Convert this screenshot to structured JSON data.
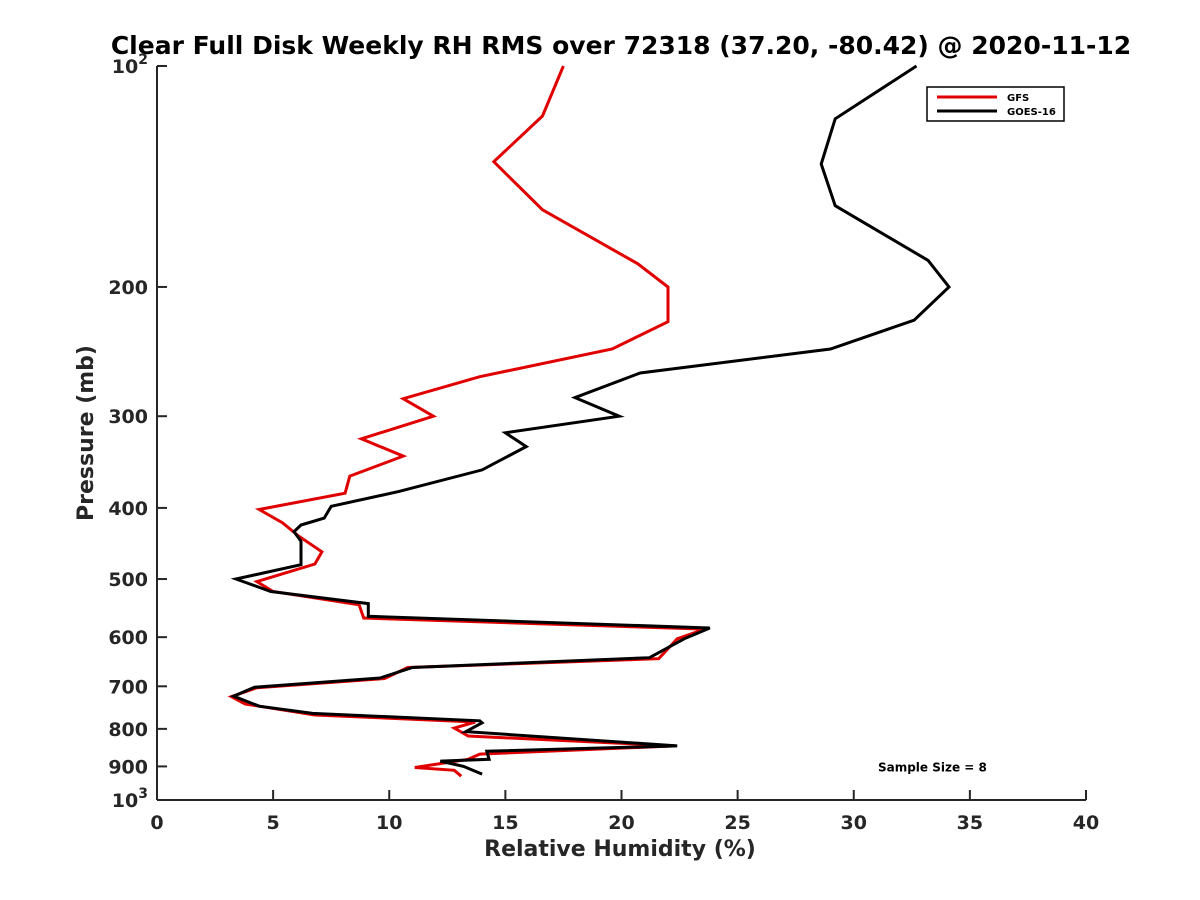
{
  "chart_data": {
    "type": "line",
    "title": "Clear Full Disk Weekly RH RMS over 72318 (37.20, -80.42) @ 2020-11-12",
    "xlabel": "Relative Humidity (%)",
    "ylabel": "Pressure (mb)",
    "xlim": [
      0,
      40
    ],
    "ylim": [
      1000,
      100
    ],
    "yscale": "log",
    "y_reversed": true,
    "grid": false,
    "legend_position": "top-right",
    "x_ticks": [
      {
        "value": 0,
        "label": "0"
      },
      {
        "value": 5,
        "label": "5"
      },
      {
        "value": 10,
        "label": "10"
      },
      {
        "value": 15,
        "label": "15"
      },
      {
        "value": 20,
        "label": "20"
      },
      {
        "value": 25,
        "label": "25"
      },
      {
        "value": 30,
        "label": "30"
      },
      {
        "value": 35,
        "label": "35"
      },
      {
        "value": 40,
        "label": "40"
      }
    ],
    "y_ticks": [
      {
        "value": 100,
        "base": "10",
        "exp": "2"
      },
      {
        "value": 200,
        "label": "200"
      },
      {
        "value": 300,
        "label": "300"
      },
      {
        "value": 400,
        "label": "400"
      },
      {
        "value": 500,
        "label": "500"
      },
      {
        "value": 600,
        "label": "600"
      },
      {
        "value": 700,
        "label": "700"
      },
      {
        "value": 800,
        "label": "800"
      },
      {
        "value": 900,
        "label": "900"
      },
      {
        "value": 1000,
        "base": "10",
        "exp": "3"
      }
    ],
    "series": [
      {
        "name": "GFS",
        "color": "#e00000",
        "points": [
          [
            17.5,
            100
          ],
          [
            16.6,
            117
          ],
          [
            14.5,
            135
          ],
          [
            16.6,
            157
          ],
          [
            20.7,
            186
          ],
          [
            22.0,
            200
          ],
          [
            22.0,
            223
          ],
          [
            19.6,
            243
          ],
          [
            13.9,
            265
          ],
          [
            10.6,
            284
          ],
          [
            11.9,
            300
          ],
          [
            8.8,
            322
          ],
          [
            10.6,
            340
          ],
          [
            8.3,
            362
          ],
          [
            8.1,
            382
          ],
          [
            4.4,
            402
          ],
          [
            5.4,
            419
          ],
          [
            6.1,
            437
          ],
          [
            7.1,
            459
          ],
          [
            6.8,
            477
          ],
          [
            4.3,
            504
          ],
          [
            5.0,
            520
          ],
          [
            8.7,
            542
          ],
          [
            8.9,
            565
          ],
          [
            23.6,
            585
          ],
          [
            22.4,
            603
          ],
          [
            21.6,
            642
          ],
          [
            10.8,
            660
          ],
          [
            9.8,
            683
          ],
          [
            4.3,
            703
          ],
          [
            3.2,
            723
          ],
          [
            3.8,
            740
          ],
          [
            6.8,
            766
          ],
          [
            13.7,
            783
          ],
          [
            12.8,
            798
          ],
          [
            13.4,
            818
          ],
          [
            22.3,
            844
          ],
          [
            13.9,
            866
          ],
          [
            13.4,
            880
          ],
          [
            11.1,
            903
          ],
          [
            12.8,
            911
          ],
          [
            13.1,
            928
          ]
        ]
      },
      {
        "name": "GOES-16",
        "color": "#000000",
        "points": [
          [
            32.7,
            100
          ],
          [
            29.2,
            118
          ],
          [
            28.6,
            136
          ],
          [
            29.2,
            155
          ],
          [
            33.2,
            184
          ],
          [
            34.1,
            200
          ],
          [
            32.6,
            222
          ],
          [
            29.0,
            243
          ],
          [
            20.8,
            262
          ],
          [
            18.0,
            283
          ],
          [
            19.9,
            300
          ],
          [
            15.0,
            316
          ],
          [
            15.9,
            330
          ],
          [
            14.0,
            355
          ],
          [
            10.4,
            380
          ],
          [
            7.5,
            398
          ],
          [
            7.2,
            413
          ],
          [
            6.2,
            422
          ],
          [
            5.9,
            431
          ],
          [
            6.2,
            444
          ],
          [
            6.2,
            478
          ],
          [
            3.4,
            500
          ],
          [
            4.9,
            520
          ],
          [
            9.1,
            540
          ],
          [
            9.1,
            562
          ],
          [
            23.8,
            583
          ],
          [
            22.7,
            603
          ],
          [
            21.2,
            640
          ],
          [
            11.0,
            660
          ],
          [
            9.6,
            682
          ],
          [
            4.2,
            702
          ],
          [
            3.3,
            722
          ],
          [
            4.4,
            745
          ],
          [
            6.7,
            762
          ],
          [
            13.9,
            780
          ],
          [
            14.0,
            785
          ],
          [
            13.3,
            807
          ],
          [
            22.4,
            844
          ],
          [
            14.2,
            858
          ],
          [
            14.3,
            880
          ],
          [
            12.2,
            885
          ],
          [
            13.2,
            900
          ],
          [
            14.0,
            922
          ]
        ]
      }
    ],
    "annotations": [
      {
        "text": "Sample Size = 8",
        "x": 35,
        "y": 900,
        "anchor": "end"
      }
    ]
  }
}
